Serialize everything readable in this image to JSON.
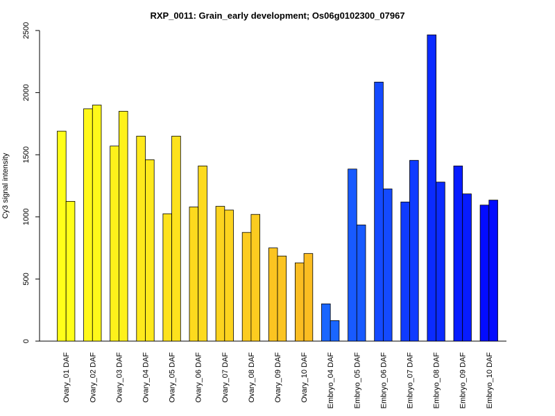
{
  "chart_data": {
    "type": "bar",
    "title": "RXP_0011: Grain_early development; Os06g0102300_07967",
    "xlabel": "",
    "ylabel": "Cy3 signal intensity",
    "ylim": [
      0,
      2500
    ],
    "yticks": [
      0,
      500,
      1000,
      1500,
      2000,
      2500
    ],
    "grid": false,
    "legend": "none",
    "bars_per_group": 2,
    "categories": [
      "Ovary_01 DAF",
      "Ovary_02 DAF",
      "Ovary_03 DAF",
      "Ovary_04 DAF",
      "Ovary_05 DAF",
      "Ovary_06 DAF",
      "Ovary_07 DAF",
      "Ovary_08 DAF",
      "Ovary_09 DAF",
      "Ovary_10 DAF",
      "Embryo_04 DAF",
      "Embryo_05 DAF",
      "Embryo_06 DAF",
      "Embryo_07 DAF",
      "Embryo_08 DAF",
      "Embryo_09 DAF",
      "Embryo_10 DAF"
    ],
    "values": [
      [
        1690,
        1125
      ],
      [
        1870,
        1900
      ],
      [
        1570,
        1850
      ],
      [
        1650,
        1460
      ],
      [
        1025,
        1650
      ],
      [
        1080,
        1410
      ],
      [
        1085,
        1055
      ],
      [
        875,
        1020
      ],
      [
        750,
        685
      ],
      [
        630,
        705
      ],
      [
        300,
        165
      ],
      [
        1385,
        935
      ],
      [
        2085,
        1225
      ],
      [
        1120,
        1455
      ],
      [
        2465,
        1280
      ],
      [
        1410,
        1185
      ],
      [
        1095,
        1135
      ]
    ],
    "colors": [
      "#FFFF19",
      "#FFF81A",
      "#FEF11B",
      "#FEE91C",
      "#FDE21D",
      "#FDDA1E",
      "#FCD31F",
      "#FCCC20",
      "#FBC421",
      "#FBBD22",
      "#1A66FF",
      "#185AFF",
      "#144AFF",
      "#0F3BFF",
      "#0B2BFF",
      "#071CFF",
      "#030CFF"
    ]
  }
}
